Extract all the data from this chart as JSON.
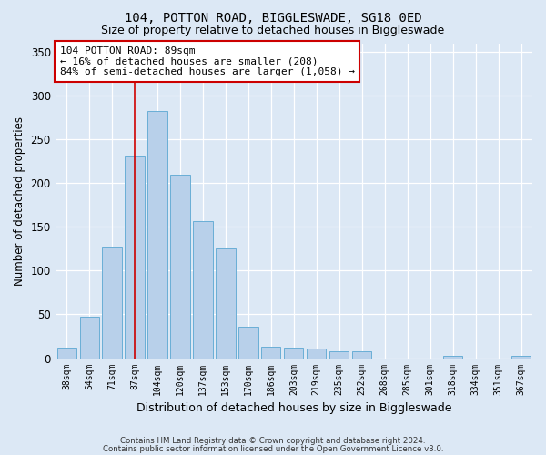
{
  "title1": "104, POTTON ROAD, BIGGLESWADE, SG18 0ED",
  "title2": "Size of property relative to detached houses in Biggleswade",
  "xlabel": "Distribution of detached houses by size in Biggleswade",
  "ylabel": "Number of detached properties",
  "categories": [
    "38sqm",
    "54sqm",
    "71sqm",
    "87sqm",
    "104sqm",
    "120sqm",
    "137sqm",
    "153sqm",
    "170sqm",
    "186sqm",
    "203sqm",
    "219sqm",
    "235sqm",
    "252sqm",
    "268sqm",
    "285sqm",
    "301sqm",
    "318sqm",
    "334sqm",
    "351sqm",
    "367sqm"
  ],
  "values": [
    12,
    47,
    127,
    232,
    283,
    210,
    157,
    125,
    36,
    13,
    12,
    11,
    8,
    8,
    0,
    0,
    0,
    3,
    0,
    0,
    3
  ],
  "bar_color": "#b8d0ea",
  "bar_edge_color": "#6aaed6",
  "highlight_index": 3,
  "highlight_line_color": "#cc0000",
  "annotation_text": "104 POTTON ROAD: 89sqm\n← 16% of detached houses are smaller (208)\n84% of semi-detached houses are larger (1,058) →",
  "annotation_box_color": "#ffffff",
  "annotation_box_edge_color": "#cc0000",
  "ylim": [
    0,
    360
  ],
  "yticks": [
    0,
    50,
    100,
    150,
    200,
    250,
    300,
    350
  ],
  "bg_color": "#dce8f5",
  "footer1": "Contains HM Land Registry data © Crown copyright and database right 2024.",
  "footer2": "Contains public sector information licensed under the Open Government Licence v3.0."
}
